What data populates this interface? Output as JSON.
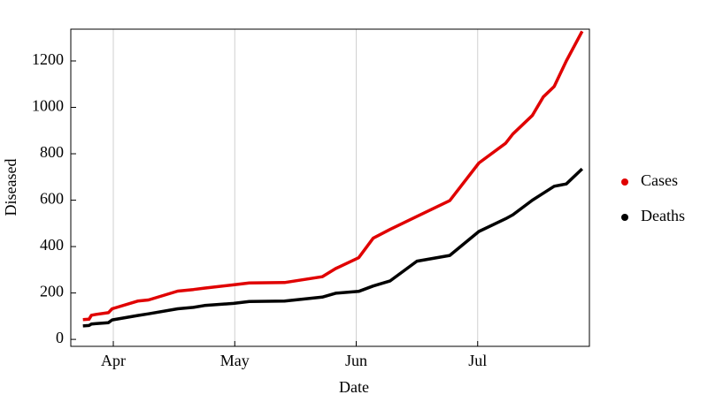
{
  "chart_data": {
    "type": "line",
    "x_label": "Date",
    "y_label": "Diseased",
    "x": [
      3.75,
      3.8,
      3.82,
      3.86,
      3.96,
      3.99,
      4.2,
      4.29,
      4.53,
      4.66,
      4.75,
      4.99,
      5.12,
      5.41,
      5.72,
      5.83,
      6.02,
      6.14,
      6.28,
      6.5,
      6.77,
      7.01,
      7.23,
      7.29,
      7.45,
      7.54,
      7.63,
      7.73,
      7.86
    ],
    "series": [
      {
        "name": "Cases",
        "color": "#e00000",
        "values": [
          85,
          87,
          104,
          108,
          115,
          132,
          165,
          170,
          208,
          215,
          221,
          235,
          243,
          245,
          270,
          305,
          352,
          436,
          474,
          530,
          598,
          760,
          845,
          885,
          965,
          1045,
          1090,
          1200,
          1328
        ]
      },
      {
        "name": "Deaths",
        "color": "#000000",
        "values": [
          58,
          60,
          66,
          68,
          72,
          84,
          103,
          110,
          132,
          138,
          146,
          155,
          163,
          165,
          182,
          199,
          207,
          230,
          252,
          337,
          362,
          465,
          520,
          537,
          600,
          630,
          660,
          670,
          735
        ]
      }
    ],
    "xlim": [
      3.65,
      7.92
    ],
    "xticks": [
      {
        "value": 4,
        "label": "Apr"
      },
      {
        "value": 5,
        "label": "May"
      },
      {
        "value": 6,
        "label": "Jun"
      },
      {
        "value": 7,
        "label": "Jul"
      }
    ],
    "ylim": [
      -30,
      1337
    ],
    "yticks": [
      0,
      200,
      400,
      600,
      800,
      1000,
      1200
    ],
    "grid": "x",
    "legend": "right"
  }
}
